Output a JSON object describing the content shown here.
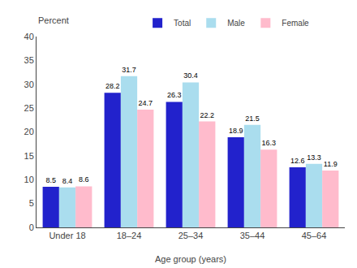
{
  "chart_data": {
    "type": "bar",
    "categories": [
      "Under 18",
      "18–24",
      "25–34",
      "35–44",
      "45–64"
    ],
    "series": [
      {
        "name": "Total",
        "color": "#2222cc",
        "values": [
          8.5,
          28.2,
          26.3,
          18.9,
          12.6
        ]
      },
      {
        "name": "Male",
        "color": "#aaddee",
        "values": [
          8.4,
          31.7,
          30.4,
          21.5,
          13.3
        ]
      },
      {
        "name": "Female",
        "color": "#ffbbcc",
        "values": [
          8.6,
          24.7,
          22.2,
          16.3,
          11.9
        ]
      }
    ],
    "xlabel": "Age group (years)",
    "ylabel": "Percent",
    "ylim": [
      0,
      40
    ],
    "yticks": [
      0,
      5,
      10,
      15,
      20,
      25,
      30,
      35,
      40
    ],
    "grid": false,
    "legend": "top",
    "data_labels": true
  }
}
